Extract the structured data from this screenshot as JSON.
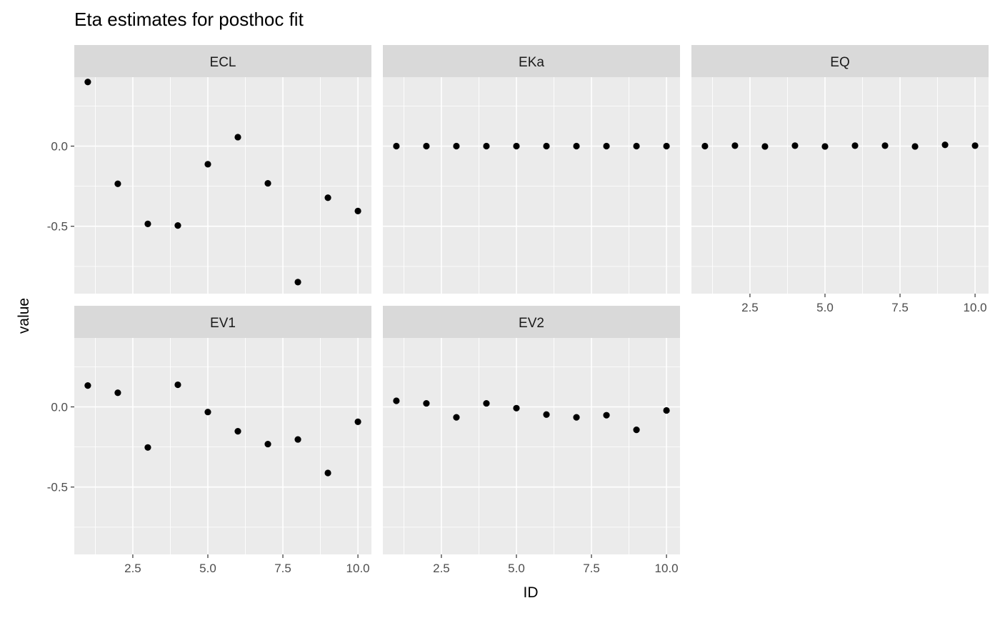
{
  "chart_data": {
    "type": "scatter",
    "title": "Eta estimates for posthoc fit",
    "xlabel": "ID",
    "ylabel": "value",
    "xlim": [
      0.55,
      10.45
    ],
    "ylim": [
      -0.92,
      0.43
    ],
    "x_ticks": [
      2.5,
      5.0,
      7.5,
      10.0
    ],
    "x_tick_labels": [
      "2.5",
      "5.0",
      "7.5",
      "10.0"
    ],
    "y_ticks": [
      0.0,
      -0.5
    ],
    "y_tick_labels": [
      "0.0",
      "-0.5"
    ],
    "grid": true,
    "layout": "facet_wrap 3 columns",
    "panels": [
      {
        "name": "ECL",
        "x": [
          1,
          2,
          3,
          4,
          5,
          6,
          7,
          8,
          9,
          10
        ],
        "values": [
          0.4,
          -0.235,
          -0.485,
          -0.495,
          -0.113,
          0.056,
          -0.232,
          -0.848,
          -0.322,
          -0.405
        ]
      },
      {
        "name": "EKa",
        "x": [
          1,
          2,
          3,
          4,
          5,
          6,
          7,
          8,
          9,
          10
        ],
        "values": [
          0.0,
          0.0,
          0.0,
          0.0,
          0.0,
          0.0,
          0.0,
          0.0,
          0.0,
          0.0
        ]
      },
      {
        "name": "EQ",
        "x": [
          1,
          2,
          3,
          4,
          5,
          6,
          7,
          8,
          9,
          10
        ],
        "values": [
          0.0,
          0.003,
          -0.002,
          0.003,
          -0.002,
          0.003,
          0.003,
          -0.002,
          0.008,
          0.003
        ]
      },
      {
        "name": "EV1",
        "x": [
          1,
          2,
          3,
          4,
          5,
          6,
          7,
          8,
          9,
          10
        ],
        "values": [
          0.133,
          0.088,
          -0.253,
          0.138,
          -0.032,
          -0.152,
          -0.232,
          -0.203,
          -0.412,
          -0.093
        ]
      },
      {
        "name": "EV2",
        "x": [
          1,
          2,
          3,
          4,
          5,
          6,
          7,
          8,
          9,
          10
        ],
        "values": [
          0.038,
          0.022,
          -0.065,
          0.022,
          -0.008,
          -0.048,
          -0.065,
          -0.052,
          -0.143,
          -0.022
        ]
      }
    ],
    "colors": {
      "panel_bg": "#ebebeb",
      "strip_bg": "#d9d9d9",
      "grid": "#ffffff",
      "point": "#000000",
      "axis_text": "#4d4d4d"
    }
  }
}
